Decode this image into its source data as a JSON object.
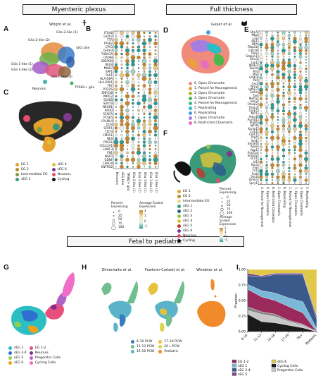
{
  "sections": {
    "myenteric": "Myenteric plexus",
    "full_thickness": "Full thickness",
    "fetal": "Fetal to pediatric"
  },
  "citations": {
    "wright": "Wright et al.",
    "guyer": "Guyer et al.",
    "elmentaite": "Elmentaite et al.",
    "fawkner": "Fawkner-Corbett et al.",
    "windster": "Windster et al."
  },
  "panels": [
    "A",
    "B",
    "C",
    "D",
    "E",
    "F",
    "G",
    "H",
    "I"
  ],
  "panel_A": {
    "clusters": [
      {
        "label": "Glia 2-like (1)",
        "color": "#6fb24a"
      },
      {
        "label": "Glia 2-like (2)",
        "color": "#e28d3d"
      },
      {
        "label": "sEG Like",
        "color": "#3a7bc8"
      },
      {
        "label": "Glia 1-like (1)",
        "color": "#a55ac6"
      },
      {
        "label": "Glia 1-like (2)",
        "color": "#e0567b"
      },
      {
        "label": "Glia 1-like (3)",
        "color": "#8f6a3d"
      },
      {
        "label": "Neurons",
        "color": "#3db5a7"
      },
      {
        "label": "TPSB2+ glia",
        "color": "#48b050"
      }
    ]
  },
  "panel_B": {
    "genes": [
      "ITGA6",
      "LUZP2",
      "TTR",
      "TPSB2",
      "CPA3",
      "GFRA3",
      "TUBA1A",
      "CRYAB",
      "SBSPON",
      "RELN",
      "MKI67",
      "SPP1",
      "PLP1",
      "HLA-DRA",
      "HLA-DPA1",
      "FRY",
      "PTGDS",
      "ZNF638",
      "PMP22",
      "S100B",
      "SOX10",
      "NRXN1",
      "APOD",
      "SCN7A",
      "PCSK5",
      "CALML4",
      "DCN",
      "SFRP1",
      "CD74",
      "CMSS1",
      "NES",
      "PRSS1",
      "COL12A1",
      "LAMC3",
      "FN1",
      "NGFR",
      "GDNF",
      "CDH19",
      "ENTPD2"
    ],
    "columns": [
      "Neurons",
      "sEG Like",
      "TPSB2+ glia",
      "Glia 2-like (1)",
      "Glia 2-like (2)",
      "Glia 1-like (1)",
      "Glia 1-like (2)",
      "Glia 1-like (3)"
    ],
    "percent_legend_title": "Percent Expressing",
    "percent_ticks": [
      "0",
      "25",
      "50",
      "75",
      "100"
    ],
    "expr_legend_title": "Average Scaled Expression",
    "expr_ticks": [
      "2",
      "1",
      "0",
      "-1"
    ]
  },
  "panel_C": {
    "legend": [
      {
        "label": "EG 1",
        "color": "#e6a22e"
      },
      {
        "label": "EG 2",
        "color": "#b88a2a"
      },
      {
        "label": "Intermediate EG",
        "color": "#7c9b3d"
      },
      {
        "label": "sEG 1",
        "color": "#3a9a7a"
      },
      {
        "label": "sEG 4",
        "color": "#d9c23a"
      },
      {
        "label": "sEG 6",
        "color": "#7d3a8f"
      },
      {
        "label": "Neurons",
        "color": "#e74c6c"
      },
      {
        "label": "Cycling",
        "color": "#111111"
      }
    ]
  },
  "panel_D": {
    "legend": [
      {
        "label": "0. Open Chromatin",
        "color": "#f08a7a"
      },
      {
        "label": "1. Poised for Neurogenesis",
        "color": "#e9a13b"
      },
      {
        "label": "2. Open Chromatin",
        "color": "#b3b431"
      },
      {
        "label": "3. Open Chromatin",
        "color": "#4cb84a"
      },
      {
        "label": "4. Poised for Neurogenesis",
        "color": "#2fbf8a"
      },
      {
        "label": "5. Replicating",
        "color": "#2bbcc7"
      },
      {
        "label": "6. Replicating",
        "color": "#4c9be0"
      },
      {
        "label": "7. Open Chromatin",
        "color": "#a67ee2"
      },
      {
        "label": "8. Restricted Chromatin",
        "color": "#e46fc0"
      }
    ]
  },
  "panel_E": {
    "genes": [
      "Sfrp5",
      "Mgp",
      "Lox",
      "Plp1",
      "Dhh",
      "Ttbp2b",
      "Cdh19",
      "Reln",
      "Stepon1",
      "Gfra3",
      "Lgr1",
      "Mki67",
      "Top2a",
      "Ptn",
      "Mal",
      "Erbb3",
      "Rel",
      "Cxcl",
      "Nrp2",
      "Igfbp7",
      "Lama",
      "Txe",
      "Mef2c",
      "Hey2",
      "Ctnap2",
      "Timp3",
      "Casp5",
      "Mcl1",
      "Adcy8",
      "Aurkb1",
      "Prodh",
      "Igf1b",
      "Kcnip1",
      "Crip1",
      "Cntn1",
      "Prph",
      "Syt1",
      "Smad6",
      "Apoe",
      "Aqp1",
      "Pcsk1n",
      "Entpd2",
      "Ucrl1",
      "Id1",
      "Rora",
      "Fos",
      "Fn1",
      "Frzb",
      "Sncb",
      "Dmkn",
      "Spry1"
    ],
    "columns": [
      "4. Poised for Neurogenesis",
      "0. Open Chromatin",
      "8. Restricted Chromatin",
      "2. Open Chromatin",
      "6. Replicating",
      "1. Poised for Neurogenesis",
      "7. Open Chromatin",
      "3. Open Chromatin",
      "5. Replicating"
    ]
  },
  "panel_F": {
    "legend": [
      {
        "label": "EG 1",
        "color": "#e6a22e"
      },
      {
        "label": "EG 2",
        "color": "#b88a2a"
      },
      {
        "label": "Intermediate EG",
        "color": "#e6d88a"
      },
      {
        "label": "sEG 1",
        "color": "#3a9a7a"
      },
      {
        "label": "sEG 2",
        "color": "#2d5e8c"
      },
      {
        "label": "sEG 3",
        "color": "#9ac24a"
      },
      {
        "label": "sEG 4",
        "color": "#d9c23a"
      },
      {
        "label": "sEG 5",
        "color": "#c0392b"
      },
      {
        "label": "sEG 6",
        "color": "#7d3a8f"
      },
      {
        "label": "Neurons",
        "color": "#e74c6c"
      },
      {
        "label": "Cycling",
        "color": "#111111"
      }
    ],
    "percent_title": "Percent Expressing",
    "percent_ticks": [
      "0",
      "25",
      "50",
      "75",
      "100"
    ],
    "expr_title": "Average Scaled Expression",
    "expr_ticks": [
      "2",
      "1",
      "0",
      "-1"
    ]
  },
  "panel_G": {
    "legend": [
      {
        "label": "sEG 1",
        "color": "#2bbfc4"
      },
      {
        "label": "sEG 2-4",
        "color": "#2f6fd0"
      },
      {
        "label": "sEG 5",
        "color": "#8fd14f"
      },
      {
        "label": "sEG 6",
        "color": "#f0a01a"
      },
      {
        "label": "EG 1-2",
        "color": "#e94f7c"
      },
      {
        "label": "Neurons",
        "color": "#7b2f8f"
      },
      {
        "label": "Progenitor Cells",
        "color": "#b064c8"
      },
      {
        "label": "Cycling Cells",
        "color": "#f06ec8"
      }
    ]
  },
  "panel_H": {
    "legend": [
      {
        "label": "6-10 PCW",
        "color": "#3a7bbf"
      },
      {
        "label": "11-13 PCW",
        "color": "#6fbf8f"
      },
      {
        "label": "15-16 PCW",
        "color": "#5ab3c8"
      },
      {
        "label": "17-19 PCW",
        "color": "#e8c23a"
      },
      {
        "label": "20+ PCW",
        "color": "#d9d54a"
      },
      {
        "label": "Pediatric",
        "color": "#f08a2a"
      }
    ]
  },
  "chart_data": {
    "type": "area",
    "title": "",
    "xlabel": "",
    "ylabel": "Fraction",
    "categories": [
      "6-10",
      "11-13",
      "15-16",
      "17-19",
      "20+",
      "Pediatric"
    ],
    "ylim": [
      0,
      1
    ],
    "yticks": [
      "0.00",
      "0.25",
      "0.50",
      "0.75",
      "1.00"
    ],
    "series": [
      {
        "name": "Cycling Cells",
        "color": "#1a1a1a",
        "values": [
          0.28,
          0.16,
          0.14,
          0.1,
          0.06,
          0.0
        ]
      },
      {
        "name": "Progenitor Cells",
        "color": "#c8c8c8",
        "values": [
          0.06,
          0.12,
          0.1,
          0.06,
          0.04,
          0.0
        ]
      },
      {
        "name": "Neurons",
        "color": "#8a8a8a",
        "values": [
          0.06,
          0.04,
          0.04,
          0.02,
          0.02,
          0.0
        ]
      },
      {
        "name": "EG 1-2",
        "color": "#9b2a5c",
        "values": [
          0.28,
          0.24,
          0.22,
          0.22,
          0.18,
          0.0
        ]
      },
      {
        "name": "sEG 1",
        "color": "#7bb8d8",
        "values": [
          0.08,
          0.1,
          0.12,
          0.14,
          0.18,
          0.05
        ]
      },
      {
        "name": "sEG 2-4",
        "color": "#3a5a8c",
        "values": [
          0.14,
          0.22,
          0.3,
          0.38,
          0.44,
          0.15
        ]
      },
      {
        "name": "sEG 5",
        "color": "#7d4a8a",
        "values": [
          0.04,
          0.02,
          0.02,
          0.02,
          0.02,
          0.05
        ]
      },
      {
        "name": "sEG 6",
        "color": "#e0c84a",
        "values": [
          0.06,
          0.1,
          0.06,
          0.06,
          0.06,
          0.75
        ]
      }
    ],
    "legend": [
      {
        "label": "EG 1-2",
        "color": "#9b2a5c"
      },
      {
        "label": "sEG 1",
        "color": "#7bb8d8"
      },
      {
        "label": "sEG 2-4",
        "color": "#3a5a8c"
      },
      {
        "label": "sEG 5",
        "color": "#7d4a8a"
      },
      {
        "label": "sEG 6",
        "color": "#e0c84a"
      },
      {
        "label": "Cycling Cells",
        "color": "#1a1a1a"
      },
      {
        "label": "Progenitor Cells",
        "color": "#c8c8c8"
      }
    ]
  }
}
